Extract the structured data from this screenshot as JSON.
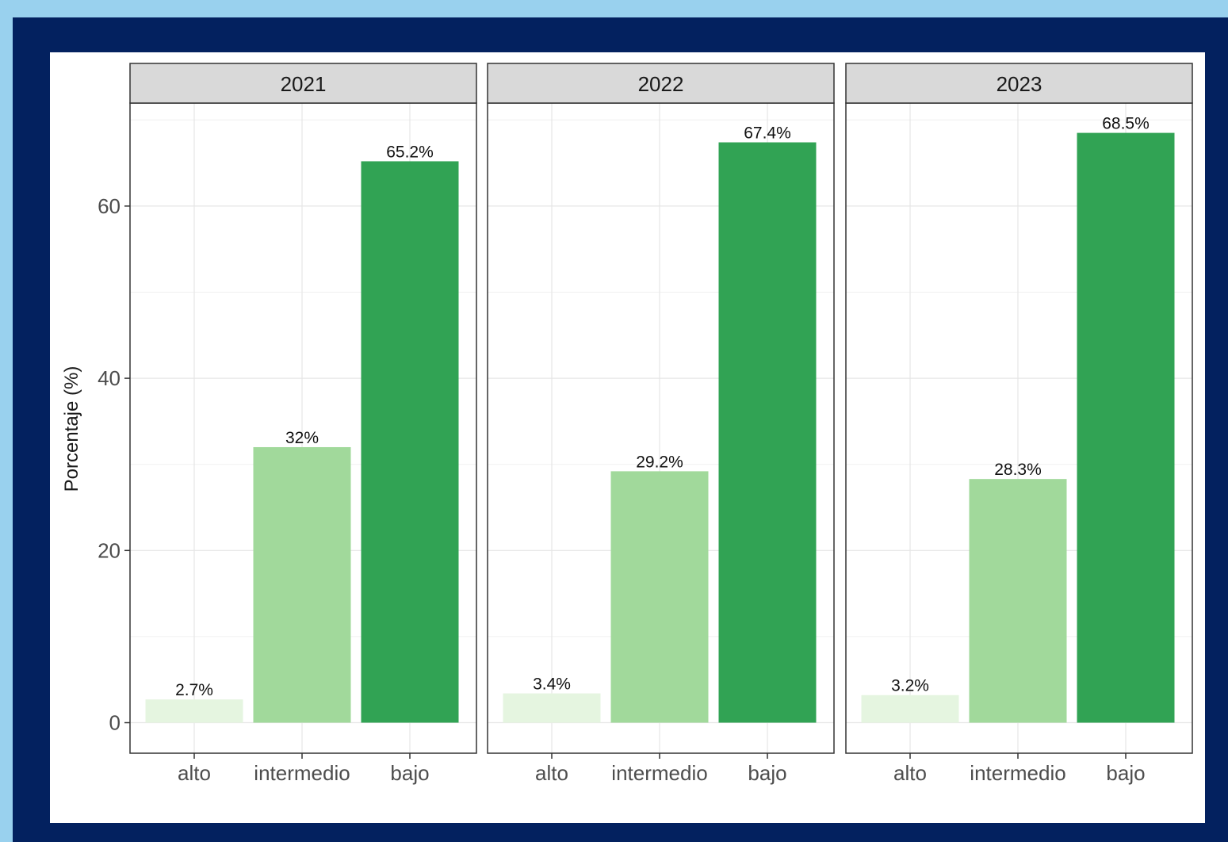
{
  "chart_data": {
    "type": "bar",
    "ylabel": "Porcentaje (%)",
    "xlabel": "",
    "ylim": [
      0,
      72.2
    ],
    "yticks": [
      0,
      20,
      40,
      60
    ],
    "grid": true,
    "categories": [
      "alto",
      "intermedio",
      "bajo"
    ],
    "colors": [
      "#e5f5e0",
      "#a1d99b",
      "#31a354"
    ],
    "panels": [
      {
        "facet": "2021",
        "values": [
          2.7,
          32,
          65.2
        ],
        "labels": [
          "2.7%",
          "32%",
          "65.2%"
        ]
      },
      {
        "facet": "2022",
        "values": [
          3.4,
          29.2,
          67.4
        ],
        "labels": [
          "3.4%",
          "29.2%",
          "67.4%"
        ]
      },
      {
        "facet": "2023",
        "values": [
          3.2,
          28.3,
          68.5
        ],
        "labels": [
          "3.2%",
          "28.3%",
          "68.5%"
        ]
      }
    ]
  }
}
